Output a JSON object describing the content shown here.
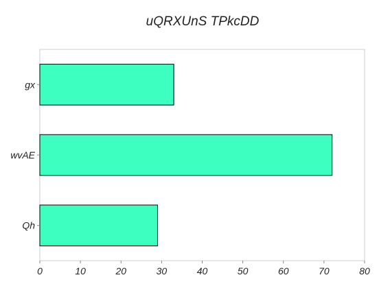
{
  "chart_data": {
    "type": "bar",
    "orientation": "horizontal",
    "title": "uQRXUnS TPkcDD",
    "xlabel": "",
    "ylabel": "",
    "categories": [
      "gx",
      "wvAE",
      "Qh"
    ],
    "values": [
      33,
      72,
      29
    ],
    "xlim": [
      0,
      80
    ],
    "xticks": [
      0,
      10,
      20,
      30,
      40,
      50,
      60,
      70,
      80
    ],
    "grid": false,
    "bar_color": "#3dffc0",
    "bar_edge_color": "#000000"
  }
}
